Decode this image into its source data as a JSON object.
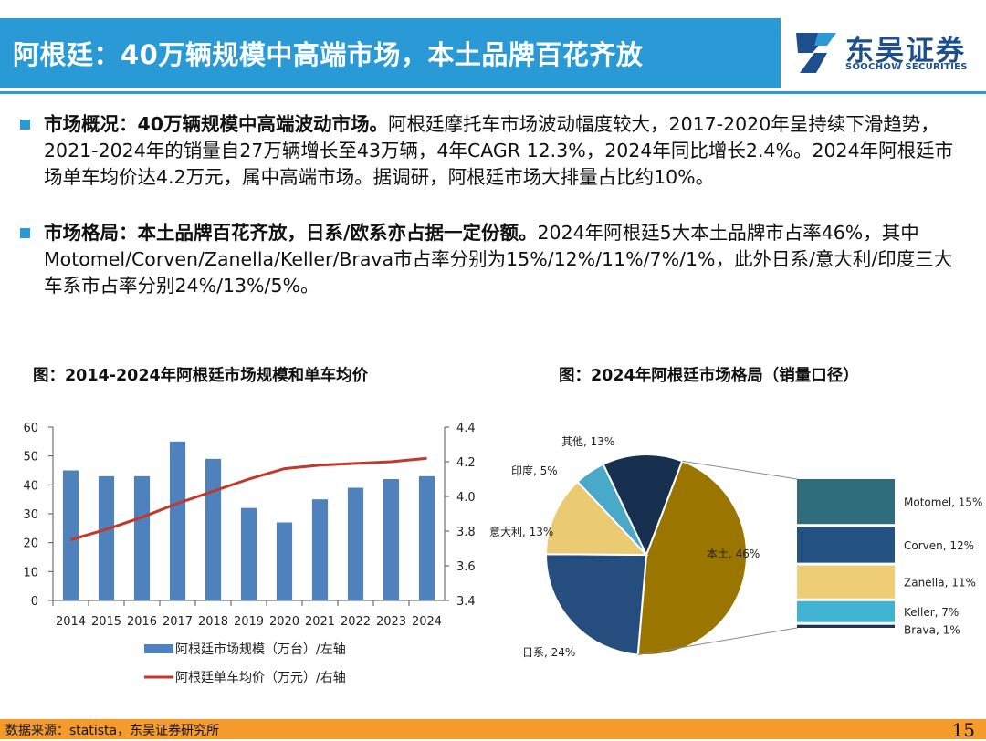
{
  "header": {
    "title": "阿根廷：40万辆规模中高端市场，本土品牌百花齐放",
    "logo_cn": "东吴证券",
    "logo_en": "SOOCHOW SECURITIES"
  },
  "bullets": [
    {
      "lead": "市场概况：40万辆规模中高端波动市场。",
      "text": "阿根廷摩托车市场波动幅度较大，2017-2020年呈持续下滑趋势，2021-2024年的销量自27万辆增长至43万辆，4年CAGR 12.3%，2024年同比增长2.4%。2024年阿根廷市场单车均价达4.2万元，属中高端市场。据调研，阿根廷市场大排量占比约10%。"
    },
    {
      "lead": "市场格局：本土品牌百花齐放，日系/欧系亦占据一定份额。",
      "text": "2024年阿根廷5大本土品牌市占率46%，其中Motomel/Corven/Zanella/Keller/Brava市占率分别为15%/12%/11%/7%/1%，此外日系/意大利/印度三大车系市占率分别24%/13%/5%。"
    }
  ],
  "figures": {
    "left_title": "图：2014-2024年阿根廷市场规模和单车均价",
    "right_title": "图：2024年阿根廷市场格局（销量口径）"
  },
  "chart_data": [
    {
      "type": "bar",
      "categories": [
        "2014",
        "2015",
        "2016",
        "2017",
        "2018",
        "2019",
        "2020",
        "2021",
        "2022",
        "2023",
        "2024"
      ],
      "series": [
        {
          "name": "阿根廷市场规模（万台）/左轴",
          "type": "bar",
          "axis": "left",
          "values": [
            45,
            43,
            43,
            55,
            49,
            32,
            27,
            35,
            39,
            42,
            43
          ],
          "color": "#4f81bd"
        },
        {
          "name": "阿根廷单车均价（万元）/右轴",
          "type": "line",
          "axis": "right",
          "values": [
            3.75,
            3.81,
            3.88,
            3.96,
            4.03,
            4.1,
            4.16,
            4.18,
            4.19,
            4.2,
            4.22
          ],
          "color": "#c0392b"
        }
      ],
      "y_left": {
        "min": 0,
        "max": 60,
        "ticks": [
          "0",
          "10",
          "20",
          "30",
          "40",
          "50",
          "60"
        ]
      },
      "y_right": {
        "min": 3.4,
        "max": 4.4,
        "ticks": [
          "3.4",
          "3.6",
          "3.8",
          "4.0",
          "4.2",
          "4.4"
        ]
      },
      "legend": "bottom",
      "grid": false
    },
    {
      "type": "pie",
      "slices": [
        {
          "label": "本土, 46%",
          "value": 46,
          "color": "#9a7500"
        },
        {
          "label": "日系, 24%",
          "value": 24,
          "color": "#254e7e"
        },
        {
          "label": "意大利, 13%",
          "value": 13,
          "color": "#eacb72"
        },
        {
          "label": "印度, 5%",
          "value": 5,
          "color": "#4aa8c9"
        },
        {
          "label": "其他, 13%",
          "value": 13,
          "color": "#17304f"
        }
      ],
      "breakdown_of": "本土",
      "breakdown": [
        {
          "label": "Motomel, 15%",
          "value": 15,
          "color": "#2f6d7c"
        },
        {
          "label": "Corven, 12%",
          "value": 12,
          "color": "#235283"
        },
        {
          "label": "Zanella, 11%",
          "value": 11,
          "color": "#efcd75"
        },
        {
          "label": "Keller, 7%",
          "value": 7,
          "color": "#3fb3d1"
        },
        {
          "label": "Brava, 1%",
          "value": 1,
          "color": "#1c3454"
        }
      ]
    }
  ],
  "footer": {
    "source": "数据来源：statista，东吴证券研究所",
    "page": "15"
  }
}
